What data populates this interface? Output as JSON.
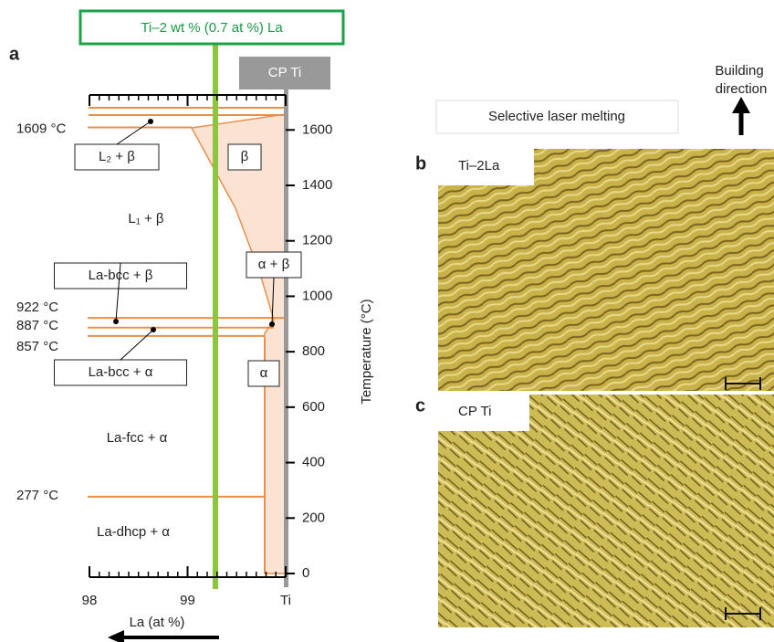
{
  "panel_a": {
    "label": "a",
    "composition": "Ti–2 wt % (0.7 at %) La",
    "reference": "CP Ti",
    "y_axis_title": "Temperature (°C)",
    "ylim": [
      0,
      1680
    ],
    "yticks": [
      0,
      200,
      400,
      600,
      800,
      1000,
      1200,
      1400,
      1600
    ],
    "x_axis_title": "La (at %)",
    "xlim": [
      98,
      100
    ],
    "xticks": [
      98,
      99,
      {
        "value": 100,
        "label": "Ti"
      }
    ],
    "isotherms": [
      {
        "value": 1609,
        "label": "1609 °C"
      },
      {
        "value": 922,
        "label": "922 °C"
      },
      {
        "value": 887,
        "label": "887 °C"
      },
      {
        "value": 857,
        "label": "857 °C"
      },
      {
        "value": 277,
        "label": "277 °C"
      }
    ],
    "phase_labels": [
      "L₂ + β",
      "β",
      "L₁ + β",
      "La-bcc + β",
      "α + β",
      "La-bcc + α",
      "α",
      "La-fcc + α",
      "La-dhcp + α"
    ]
  },
  "process": "Selective laser melting",
  "building_direction": [
    "Building",
    "direction"
  ],
  "panel_b": {
    "label": "b",
    "title": "Ti–2La"
  },
  "panel_c": {
    "label": "c",
    "title": "CP Ti"
  }
}
